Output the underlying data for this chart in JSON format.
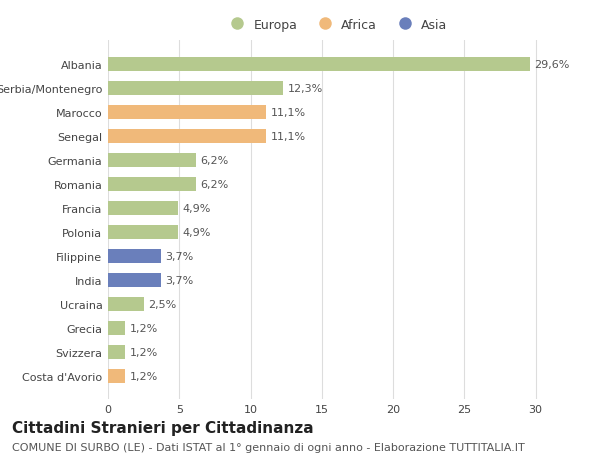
{
  "countries": [
    "Albania",
    "Serbia/Montenegro",
    "Marocco",
    "Senegal",
    "Germania",
    "Romania",
    "Francia",
    "Polonia",
    "Filippine",
    "India",
    "Ucraina",
    "Grecia",
    "Svizzera",
    "Costa d'Avorio"
  ],
  "values": [
    29.6,
    12.3,
    11.1,
    11.1,
    6.2,
    6.2,
    4.9,
    4.9,
    3.7,
    3.7,
    2.5,
    1.2,
    1.2,
    1.2
  ],
  "labels": [
    "29,6%",
    "12,3%",
    "11,1%",
    "11,1%",
    "6,2%",
    "6,2%",
    "4,9%",
    "4,9%",
    "3,7%",
    "3,7%",
    "2,5%",
    "1,2%",
    "1,2%",
    "1,2%"
  ],
  "continents": [
    "Europa",
    "Europa",
    "Africa",
    "Africa",
    "Europa",
    "Europa",
    "Europa",
    "Europa",
    "Asia",
    "Asia",
    "Europa",
    "Europa",
    "Europa",
    "Africa"
  ],
  "colors": {
    "Europa": "#b5c98e",
    "Africa": "#f0b97a",
    "Asia": "#6a7fbb"
  },
  "legend_entries": [
    "Europa",
    "Africa",
    "Asia"
  ],
  "xlim": [
    0,
    32
  ],
  "xticks": [
    0,
    5,
    10,
    15,
    20,
    25,
    30
  ],
  "bg_color": "#ffffff",
  "grid_color": "#dddddd",
  "title": "Cittadini Stranieri per Cittadinanza",
  "subtitle": "COMUNE DI SURBO (LE) - Dati ISTAT al 1° gennaio di ogni anno - Elaborazione TUTTITALIA.IT",
  "title_fontsize": 11,
  "subtitle_fontsize": 8,
  "label_fontsize": 8,
  "tick_fontsize": 8,
  "legend_fontsize": 9,
  "bar_height": 0.6
}
